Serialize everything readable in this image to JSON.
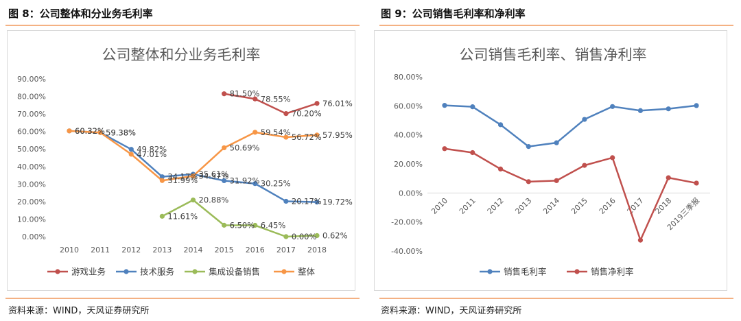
{
  "left": {
    "figure_title": "图 8：公司整体和分业务毛利率",
    "source": "资料来源：WIND，天风证券研究所"
  },
  "right": {
    "figure_title": "图 9：公司销售毛利率和净利率",
    "source": "资料来源：WIND，天风证券研究所"
  },
  "chart_data": [
    {
      "type": "line",
      "title": "公司整体和分业务毛利率",
      "categories": [
        "2010",
        "2011",
        "2012",
        "2013",
        "2014",
        "2015",
        "2016",
        "2017",
        "2018"
      ],
      "ylim": [
        0,
        90
      ],
      "ytick_labels": [
        "0.00%",
        "10.00%",
        "20.00%",
        "30.00%",
        "40.00%",
        "50.00%",
        "60.00%",
        "70.00%",
        "80.00%",
        "90.00%"
      ],
      "grid": false,
      "legend_position": "bottom",
      "series": [
        {
          "name": "游戏业务",
          "color": "#c0504d",
          "values": [
            null,
            null,
            null,
            null,
            null,
            81.5,
            78.55,
            70.2,
            76.01
          ],
          "labels": [
            null,
            null,
            null,
            null,
            null,
            "81.50%",
            "78.55%",
            "70.20%",
            "76.01%"
          ]
        },
        {
          "name": "技术服务",
          "color": "#4f81bd",
          "values": [
            60.32,
            59.38,
            49.82,
            34.17,
            35.61,
            31.92,
            30.25,
            20.17,
            19.72
          ],
          "labels": [
            "60.32%",
            "59.38%",
            "49.82%",
            "34.17%",
            "35.61%",
            "31.92%",
            "30.25%",
            "20.17%",
            "19.72%"
          ]
        },
        {
          "name": "集成设备销售",
          "color": "#9bbb59",
          "values": [
            null,
            null,
            null,
            11.61,
            20.88,
            6.5,
            6.45,
            0.0,
            0.62
          ],
          "labels": [
            null,
            null,
            null,
            "11.61%",
            "20.88%",
            "6.50%",
            "6.45%",
            "0.00%",
            "0.62%"
          ]
        },
        {
          "name": "整体",
          "color": "#f79646",
          "values": [
            60.32,
            59.38,
            47.01,
            31.99,
            34.57,
            50.69,
            59.54,
            56.72,
            57.95
          ],
          "labels": [
            "60.32%",
            "59.38%",
            "47.01%",
            "31.99%",
            "34.57%",
            "50.69%",
            "59.54%",
            "56.72%",
            "57.95%"
          ]
        }
      ]
    },
    {
      "type": "line",
      "title": "公司销售毛利率、销售净利率",
      "categories": [
        "2010",
        "2011",
        "2012",
        "2013",
        "2014",
        "2015",
        "2016",
        "2017",
        "2018",
        "2019三季报"
      ],
      "ylim": [
        -40,
        80
      ],
      "ytick_labels": [
        "-40.00%",
        "-20.00%",
        "0.00%",
        "20.00%",
        "40.00%",
        "60.00%",
        "80.00%"
      ],
      "grid": false,
      "legend_position": "bottom",
      "series": [
        {
          "name": "销售毛利率",
          "color": "#4f81bd",
          "values": [
            60.32,
            59.38,
            47.01,
            31.99,
            34.57,
            50.69,
            59.54,
            56.72,
            57.95,
            60.2
          ]
        },
        {
          "name": "销售净利率",
          "color": "#c0504d",
          "values": [
            30.5,
            27.8,
            16.5,
            7.8,
            8.5,
            19.0,
            24.3,
            -32.5,
            10.5,
            6.8
          ]
        }
      ]
    }
  ]
}
